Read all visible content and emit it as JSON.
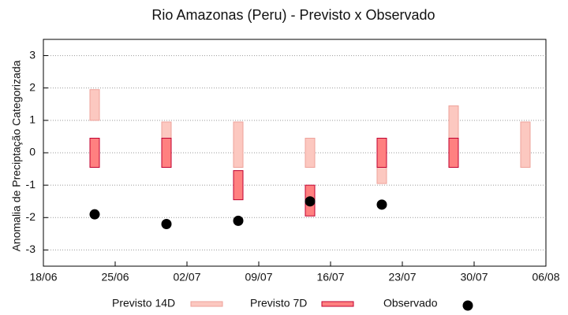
{
  "chart_data": {
    "type": "range-bar",
    "title": "Rio Amazonas (Peru) - Previsto x Observado",
    "y_label": "Anomalia de Preciptação Categorizada",
    "x": [
      "23/06",
      "30/06",
      "07/07",
      "14/07",
      "21/07",
      "28/07",
      "04/08"
    ],
    "xlim": [
      "18/06",
      "06/08"
    ],
    "xticks": [
      "18/06",
      "25/06",
      "02/07",
      "09/07",
      "16/07",
      "23/07",
      "30/07",
      "06/08"
    ],
    "ylim": [
      -3.5,
      3.5
    ],
    "yticks": [
      -3,
      -2,
      -1,
      0,
      1,
      2,
      3
    ],
    "grid": true,
    "legend": "bottom",
    "ranges": [
      {
        "name": "Previsto 14D",
        "color": "#fcc8c0",
        "edge": "#eea29a",
        "low": [
          1,
          -0.45,
          -0.45,
          -0.45,
          -0.95,
          0.45,
          -0.45
        ],
        "high": [
          1.95,
          0.95,
          0.95,
          0.45,
          0.45,
          1.45,
          0.95
        ]
      },
      {
        "name": "Previsto 7D",
        "color": "#ff8080",
        "edge": "#c00030",
        "low": [
          -0.45,
          -0.45,
          -1.45,
          -1.95,
          -0.45,
          -0.45,
          null
        ],
        "high": [
          0.45,
          0.45,
          -0.55,
          -1,
          0.45,
          0.45,
          null
        ]
      }
    ],
    "points": {
      "name": "Observado",
      "color": "#000000",
      "values": [
        -1.9,
        -2.2,
        -2.1,
        -1.5,
        -1.6,
        null,
        null
      ]
    }
  }
}
